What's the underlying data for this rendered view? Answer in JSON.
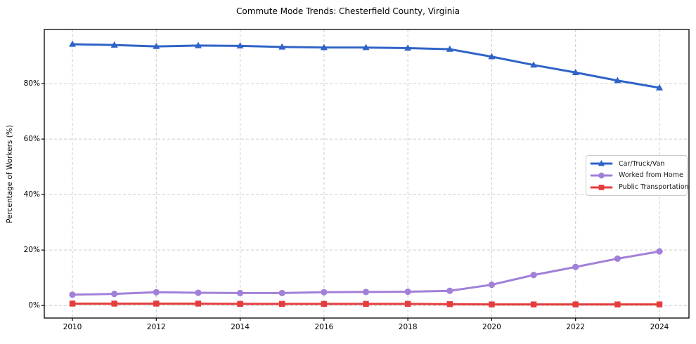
{
  "chart_data": {
    "type": "line",
    "title": "Commute Mode Trends: Chesterfield County, Virginia",
    "xlabel": "",
    "ylabel": "Percentage of Workers (%)",
    "x": [
      2010,
      2011,
      2012,
      2013,
      2014,
      2015,
      2016,
      2017,
      2018,
      2019,
      2020,
      2021,
      2022,
      2023,
      2024
    ],
    "x_ticks": [
      2010,
      2012,
      2014,
      2016,
      2018,
      2020,
      2022,
      2024
    ],
    "y_ticks": [
      {
        "label": "0%",
        "value": 0
      },
      {
        "label": "20%",
        "value": 20
      },
      {
        "label": "40%",
        "value": 40
      },
      {
        "label": "60%",
        "value": 60
      },
      {
        "label": "80%",
        "value": 80
      }
    ],
    "ylim": [
      -4.5,
      99.5
    ],
    "grid": "dashed both axes",
    "legend_position": "center right",
    "series": [
      {
        "name": "Car/Truck/Van",
        "color": "#2f63c7",
        "marker": "triangle",
        "values": [
          94.2,
          93.9,
          93.4,
          93.7,
          93.6,
          93.2,
          93.0,
          93.0,
          92.8,
          92.4,
          89.7,
          86.7,
          84.0,
          81.1,
          78.5
        ]
      },
      {
        "name": "Worked from Home",
        "color": "#a080d8",
        "marker": "circle",
        "values": [
          3.9,
          4.2,
          4.8,
          4.6,
          4.5,
          4.5,
          4.8,
          4.9,
          5.0,
          5.3,
          7.5,
          11.0,
          13.9,
          16.9,
          19.5
        ]
      },
      {
        "name": "Public Transportation",
        "color": "#e53d3d",
        "marker": "square",
        "values": [
          0.7,
          0.7,
          0.7,
          0.7,
          0.6,
          0.6,
          0.6,
          0.6,
          0.6,
          0.5,
          0.4,
          0.4,
          0.4,
          0.4,
          0.4
        ]
      }
    ],
    "colors": {
      "grid": "#cccccc",
      "axis": "#000000",
      "background": "#ffffff"
    }
  }
}
